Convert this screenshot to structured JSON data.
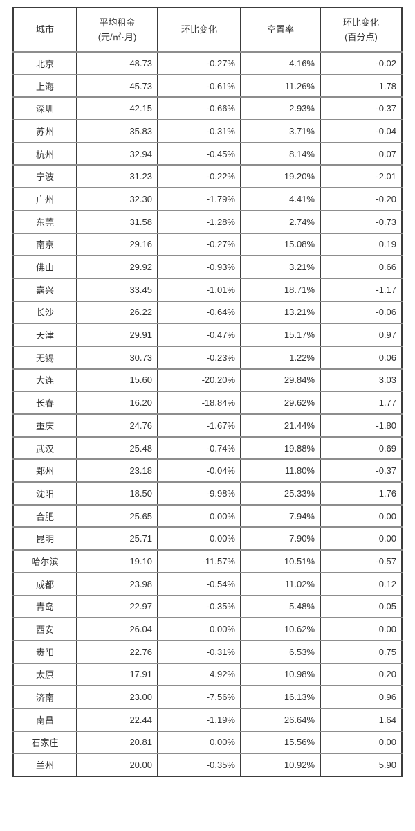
{
  "colors": {
    "background": "#ffffff",
    "border_dark": "#3c3c3c",
    "border_light": "#8d8d8d",
    "text": "#333333"
  },
  "chart_data": {
    "type": "table",
    "title": "",
    "columns": [
      "城市",
      "平均租金 (元/㎡·月)",
      "环比变化",
      "空置率",
      "环比变化 (百分点)"
    ],
    "header_lines": [
      [
        "城市"
      ],
      [
        "平均租金",
        "(元/㎡·月)"
      ],
      [
        "环比变化"
      ],
      [
        "空置率"
      ],
      [
        "环比变化",
        "(百分点)"
      ]
    ],
    "rows": [
      [
        "北京",
        "48.73",
        "-0.27%",
        "4.16%",
        "-0.02"
      ],
      [
        "上海",
        "45.73",
        "-0.61%",
        "11.26%",
        "1.78"
      ],
      [
        "深圳",
        "42.15",
        "-0.66%",
        "2.93%",
        "-0.37"
      ],
      [
        "苏州",
        "35.83",
        "-0.31%",
        "3.71%",
        "-0.04"
      ],
      [
        "杭州",
        "32.94",
        "-0.45%",
        "8.14%",
        "0.07"
      ],
      [
        "宁波",
        "31.23",
        "-0.22%",
        "19.20%",
        "-2.01"
      ],
      [
        "广州",
        "32.30",
        "-1.79%",
        "4.41%",
        "-0.20"
      ],
      [
        "东莞",
        "31.58",
        "-1.28%",
        "2.74%",
        "-0.73"
      ],
      [
        "南京",
        "29.16",
        "-0.27%",
        "15.08%",
        "0.19"
      ],
      [
        "佛山",
        "29.92",
        "-0.93%",
        "3.21%",
        "0.66"
      ],
      [
        "嘉兴",
        "33.45",
        "-1.01%",
        "18.71%",
        "-1.17"
      ],
      [
        "长沙",
        "26.22",
        "-0.64%",
        "13.21%",
        "-0.06"
      ],
      [
        "天津",
        "29.91",
        "-0.47%",
        "15.17%",
        "0.97"
      ],
      [
        "无锡",
        "30.73",
        "-0.23%",
        "1.22%",
        "0.06"
      ],
      [
        "大连",
        "15.60",
        "-20.20%",
        "29.84%",
        "3.03"
      ],
      [
        "长春",
        "16.20",
        "-18.84%",
        "29.62%",
        "1.77"
      ],
      [
        "重庆",
        "24.76",
        "-1.67%",
        "21.44%",
        "-1.80"
      ],
      [
        "武汉",
        "25.48",
        "-0.74%",
        "19.88%",
        "0.69"
      ],
      [
        "郑州",
        "23.18",
        "-0.04%",
        "11.80%",
        "-0.37"
      ],
      [
        "沈阳",
        "18.50",
        "-9.98%",
        "25.33%",
        "1.76"
      ],
      [
        "合肥",
        "25.65",
        "0.00%",
        "7.94%",
        "0.00"
      ],
      [
        "昆明",
        "25.71",
        "0.00%",
        "7.90%",
        "0.00"
      ],
      [
        "哈尔滨",
        "19.10",
        "-11.57%",
        "10.51%",
        "-0.57"
      ],
      [
        "成都",
        "23.98",
        "-0.54%",
        "11.02%",
        "0.12"
      ],
      [
        "青岛",
        "22.97",
        "-0.35%",
        "5.48%",
        "0.05"
      ],
      [
        "西安",
        "26.04",
        "0.00%",
        "10.62%",
        "0.00"
      ],
      [
        "贵阳",
        "22.76",
        "-0.31%",
        "6.53%",
        "0.75"
      ],
      [
        "太原",
        "17.91",
        "4.92%",
        "10.98%",
        "0.20"
      ],
      [
        "济南",
        "23.00",
        "-7.56%",
        "16.13%",
        "0.96"
      ],
      [
        "南昌",
        "22.44",
        "-1.19%",
        "26.64%",
        "1.64"
      ],
      [
        "石家庄",
        "20.81",
        "0.00%",
        "15.56%",
        "0.00"
      ],
      [
        "兰州",
        "20.00",
        "-0.35%",
        "10.92%",
        "5.90"
      ]
    ]
  }
}
